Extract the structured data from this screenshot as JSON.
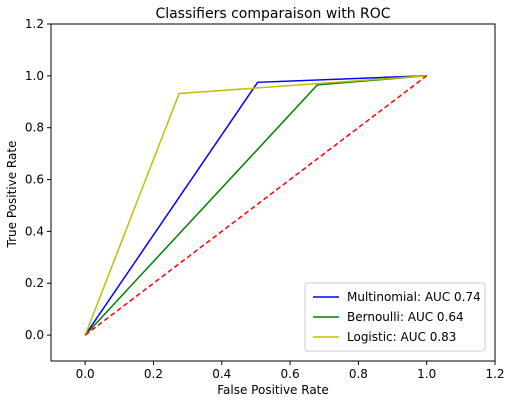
{
  "chart_data": {
    "type": "line",
    "title": "Classifiers comparaison with ROC",
    "xlabel": "False Positive Rate",
    "ylabel": "True Positive Rate",
    "xlim": [
      -0.1,
      1.2
    ],
    "ylim": [
      -0.1,
      1.2
    ],
    "xticks": [
      "0.0",
      "0.2",
      "0.4",
      "0.6",
      "0.8",
      "1.0",
      "1.2"
    ],
    "yticks": [
      "0.0",
      "0.2",
      "0.4",
      "0.6",
      "0.8",
      "1.0",
      "1.2"
    ],
    "grid": false,
    "legend_position": "lower-right",
    "series": [
      {
        "name": "Multinomial: AUC 0.74",
        "color": "#0000ff",
        "style": "solid",
        "x": [
          0,
          0.505,
          1.0
        ],
        "y": [
          0,
          0.975,
          1.0
        ]
      },
      {
        "name": "Bernoulli: AUC 0.64",
        "color": "#008000",
        "style": "solid",
        "x": [
          0,
          0.68,
          1.0
        ],
        "y": [
          0,
          0.965,
          1.0
        ]
      },
      {
        "name": "Logistic: AUC 0.83",
        "color": "#bfbf00",
        "style": "solid",
        "x": [
          0,
          0.275,
          1.0
        ],
        "y": [
          0,
          0.932,
          1.0
        ]
      },
      {
        "color": "#ff0000",
        "style": "dashed",
        "x": [
          0,
          1.0
        ],
        "y": [
          0,
          1.0
        ]
      }
    ]
  }
}
